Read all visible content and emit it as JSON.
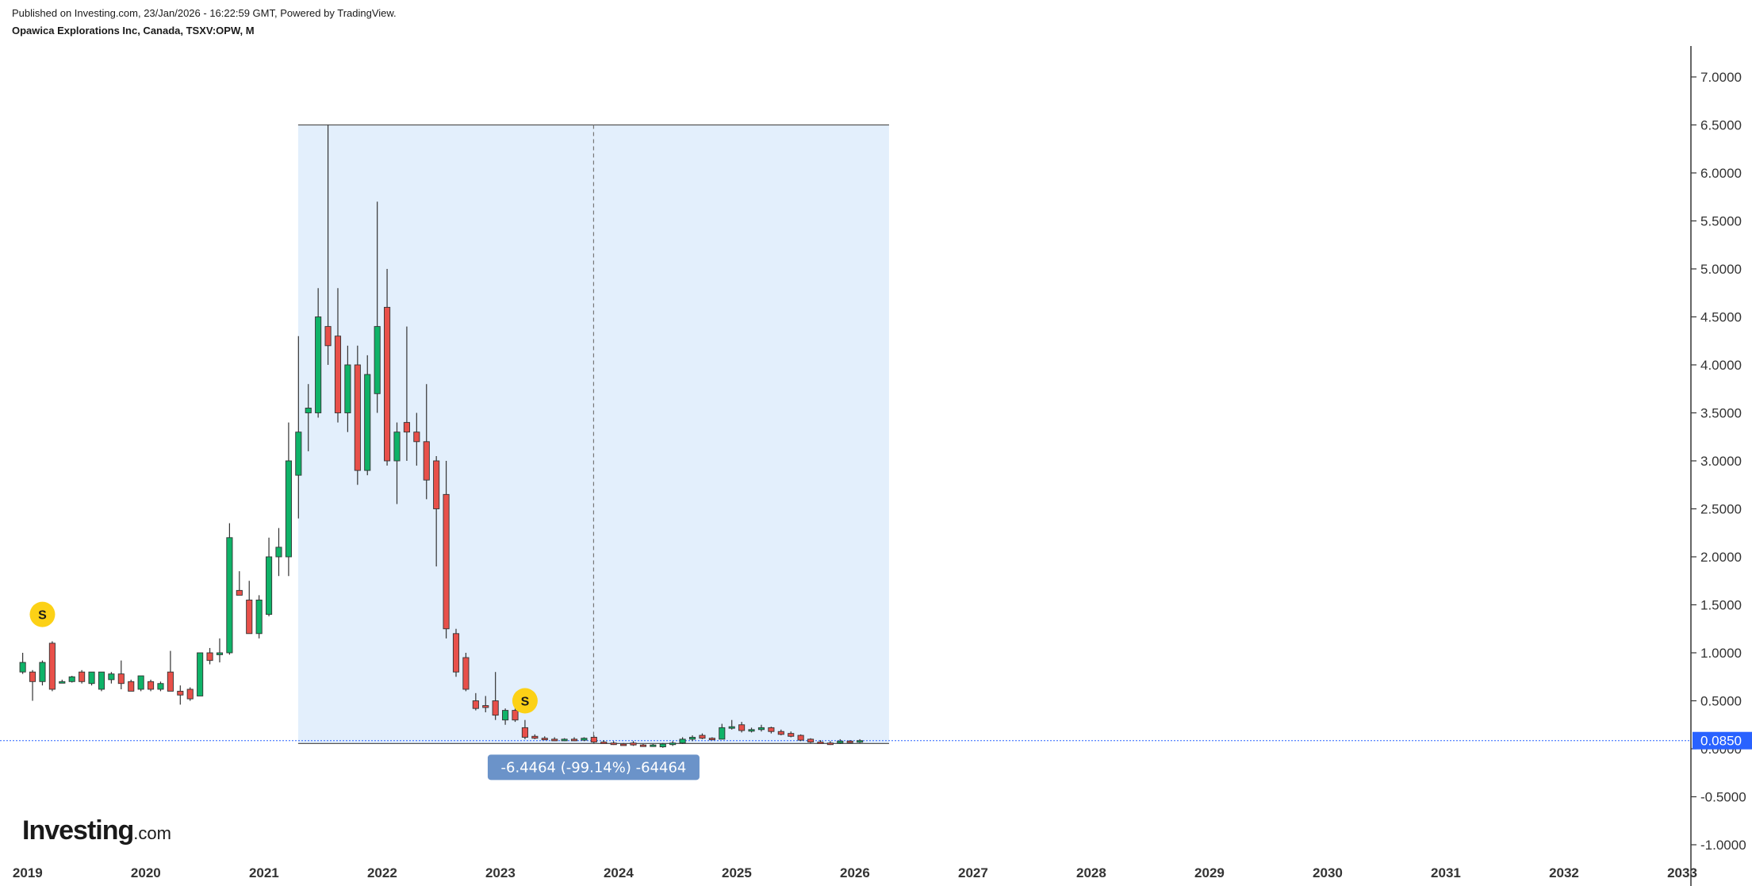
{
  "header": {
    "published": "Published on Investing.com, 23/Jan/2026 - 16:22:59 GMT, Powered by TradingView.",
    "title": "Opawica Explorations Inc, Canada, TSXV:OPW, M"
  },
  "logo": {
    "main": "Investing",
    "suffix": ".com"
  },
  "chart_data": {
    "type": "candlestick",
    "interval": "monthly",
    "ylim": [
      -1.15,
      7.35
    ],
    "xlim": [
      "2018-11",
      "2033-01"
    ],
    "y_ticks": [
      {
        "value": 7,
        "label": "7.0000"
      },
      {
        "value": 6.5,
        "label": "6.5000"
      },
      {
        "value": 6,
        "label": "6.0000"
      },
      {
        "value": 5.5,
        "label": "5.5000"
      },
      {
        "value": 5,
        "label": "5.0000"
      },
      {
        "value": 4.5,
        "label": "4.5000"
      },
      {
        "value": 4,
        "label": "4.0000"
      },
      {
        "value": 3.5,
        "label": "3.5000"
      },
      {
        "value": 3,
        "label": "3.0000"
      },
      {
        "value": 2.5,
        "label": "2.5000"
      },
      {
        "value": 2,
        "label": "2.0000"
      },
      {
        "value": 1.5,
        "label": "1.5000"
      },
      {
        "value": 1,
        "label": "1.0000"
      },
      {
        "value": 0.5,
        "label": "0.5000"
      },
      {
        "value": 0,
        "label": "0.0000"
      },
      {
        "value": -0.5,
        "label": "-0.5000"
      },
      {
        "value": -1,
        "label": "-1.0000"
      }
    ],
    "x_ticks": [
      "2019",
      "2020",
      "2021",
      "2022",
      "2023",
      "2024",
      "2025",
      "2026",
      "2027",
      "2028",
      "2029",
      "2030",
      "2031",
      "2032",
      "2033"
    ],
    "candles": [
      {
        "t": "2018-12",
        "o": 0.8,
        "h": 1.0,
        "l": 0.78,
        "c": 0.9
      },
      {
        "t": "2019-01",
        "o": 0.8,
        "h": 0.82,
        "l": 0.5,
        "c": 0.7
      },
      {
        "t": "2019-02",
        "o": 0.7,
        "h": 0.92,
        "l": 0.66,
        "c": 0.9
      },
      {
        "t": "2019-03",
        "o": 1.1,
        "h": 1.12,
        "l": 0.6,
        "c": 0.62
      },
      {
        "t": "2019-04",
        "o": 0.7,
        "h": 0.72,
        "l": 0.69,
        "c": 0.7
      },
      {
        "t": "2019-05",
        "o": 0.7,
        "h": 0.76,
        "l": 0.69,
        "c": 0.75
      },
      {
        "t": "2019-06",
        "o": 0.8,
        "h": 0.82,
        "l": 0.68,
        "c": 0.7
      },
      {
        "t": "2019-07",
        "o": 0.68,
        "h": 0.8,
        "l": 0.66,
        "c": 0.8
      },
      {
        "t": "2019-08",
        "o": 0.62,
        "h": 0.8,
        "l": 0.6,
        "c": 0.8
      },
      {
        "t": "2019-09",
        "o": 0.72,
        "h": 0.8,
        "l": 0.68,
        "c": 0.78
      },
      {
        "t": "2019-10",
        "o": 0.78,
        "h": 0.92,
        "l": 0.62,
        "c": 0.68
      },
      {
        "t": "2019-11",
        "o": 0.7,
        "h": 0.72,
        "l": 0.6,
        "c": 0.6
      },
      {
        "t": "2019-12",
        "o": 0.62,
        "h": 0.76,
        "l": 0.6,
        "c": 0.76
      },
      {
        "t": "2020-01",
        "o": 0.7,
        "h": 0.72,
        "l": 0.6,
        "c": 0.62
      },
      {
        "t": "2020-02",
        "o": 0.62,
        "h": 0.7,
        "l": 0.6,
        "c": 0.68
      },
      {
        "t": "2020-03",
        "o": 0.8,
        "h": 1.02,
        "l": 0.6,
        "c": 0.6
      },
      {
        "t": "2020-04",
        "o": 0.6,
        "h": 0.66,
        "l": 0.46,
        "c": 0.56
      },
      {
        "t": "2020-05",
        "o": 0.62,
        "h": 0.64,
        "l": 0.5,
        "c": 0.52
      },
      {
        "t": "2020-06",
        "o": 0.55,
        "h": 1.0,
        "l": 0.55,
        "c": 1.0
      },
      {
        "t": "2020-07",
        "o": 1.0,
        "h": 1.05,
        "l": 0.88,
        "c": 0.92
      },
      {
        "t": "2020-08",
        "o": 0.98,
        "h": 1.15,
        "l": 0.9,
        "c": 1.0
      },
      {
        "t": "2020-09",
        "o": 1.0,
        "h": 2.35,
        "l": 0.98,
        "c": 2.2
      },
      {
        "t": "2020-10",
        "o": 1.65,
        "h": 1.85,
        "l": 1.6,
        "c": 1.6
      },
      {
        "t": "2020-11",
        "o": 1.55,
        "h": 1.75,
        "l": 1.2,
        "c": 1.2
      },
      {
        "t": "2020-12",
        "o": 1.2,
        "h": 1.6,
        "l": 1.15,
        "c": 1.55
      },
      {
        "t": "2021-01",
        "o": 1.4,
        "h": 2.2,
        "l": 1.38,
        "c": 2.0
      },
      {
        "t": "2021-02",
        "o": 2.0,
        "h": 2.3,
        "l": 1.8,
        "c": 2.1
      },
      {
        "t": "2021-03",
        "o": 2.0,
        "h": 3.4,
        "l": 1.8,
        "c": 3.0
      },
      {
        "t": "2021-04",
        "o": 2.85,
        "h": 4.3,
        "l": 2.4,
        "c": 3.3
      },
      {
        "t": "2021-05",
        "o": 3.5,
        "h": 3.8,
        "l": 3.1,
        "c": 3.55
      },
      {
        "t": "2021-06",
        "o": 3.5,
        "h": 4.8,
        "l": 3.45,
        "c": 4.5
      },
      {
        "t": "2021-07",
        "o": 4.4,
        "h": 6.5,
        "l": 4.0,
        "c": 4.2
      },
      {
        "t": "2021-08",
        "o": 4.3,
        "h": 4.8,
        "l": 3.4,
        "c": 3.5
      },
      {
        "t": "2021-09",
        "o": 3.5,
        "h": 4.2,
        "l": 3.3,
        "c": 4.0
      },
      {
        "t": "2021-10",
        "o": 4.0,
        "h": 4.2,
        "l": 2.75,
        "c": 2.9
      },
      {
        "t": "2021-11",
        "o": 2.9,
        "h": 4.1,
        "l": 2.85,
        "c": 3.9
      },
      {
        "t": "2021-12",
        "o": 3.7,
        "h": 5.7,
        "l": 3.5,
        "c": 4.4
      },
      {
        "t": "2022-01",
        "o": 4.6,
        "h": 5.0,
        "l": 2.95,
        "c": 3.0
      },
      {
        "t": "2022-02",
        "o": 3.0,
        "h": 3.4,
        "l": 2.55,
        "c": 3.3
      },
      {
        "t": "2022-03",
        "o": 3.4,
        "h": 4.4,
        "l": 3.0,
        "c": 3.3
      },
      {
        "t": "2022-04",
        "o": 3.3,
        "h": 3.5,
        "l": 2.95,
        "c": 3.2
      },
      {
        "t": "2022-05",
        "o": 3.2,
        "h": 3.8,
        "l": 2.6,
        "c": 2.8
      },
      {
        "t": "2022-06",
        "o": 3.0,
        "h": 3.05,
        "l": 1.9,
        "c": 2.5
      },
      {
        "t": "2022-07",
        "o": 2.65,
        "h": 3.0,
        "l": 1.15,
        "c": 1.25
      },
      {
        "t": "2022-08",
        "o": 1.2,
        "h": 1.25,
        "l": 0.75,
        "c": 0.8
      },
      {
        "t": "2022-09",
        "o": 0.95,
        "h": 1.0,
        "l": 0.6,
        "c": 0.62
      },
      {
        "t": "2022-10",
        "o": 0.5,
        "h": 0.58,
        "l": 0.4,
        "c": 0.42
      },
      {
        "t": "2022-11",
        "o": 0.45,
        "h": 0.55,
        "l": 0.38,
        "c": 0.43
      },
      {
        "t": "2022-12",
        "o": 0.5,
        "h": 0.8,
        "l": 0.3,
        "c": 0.35
      },
      {
        "t": "2023-01",
        "o": 0.3,
        "h": 0.42,
        "l": 0.25,
        "c": 0.4
      },
      {
        "t": "2023-02",
        "o": 0.4,
        "h": 0.42,
        "l": 0.28,
        "c": 0.3
      },
      {
        "t": "2023-03",
        "o": 0.22,
        "h": 0.3,
        "l": 0.1,
        "c": 0.12
      },
      {
        "t": "2023-04",
        "o": 0.13,
        "h": 0.15,
        "l": 0.1,
        "c": 0.11
      },
      {
        "t": "2023-05",
        "o": 0.11,
        "h": 0.13,
        "l": 0.09,
        "c": 0.1
      },
      {
        "t": "2023-06",
        "o": 0.1,
        "h": 0.12,
        "l": 0.08,
        "c": 0.09
      },
      {
        "t": "2023-07",
        "o": 0.09,
        "h": 0.11,
        "l": 0.08,
        "c": 0.1
      },
      {
        "t": "2023-08",
        "o": 0.1,
        "h": 0.12,
        "l": 0.08,
        "c": 0.09
      },
      {
        "t": "2023-09",
        "o": 0.09,
        "h": 0.12,
        "l": 0.08,
        "c": 0.11
      },
      {
        "t": "2023-10",
        "o": 0.12,
        "h": 0.14,
        "l": 0.06,
        "c": 0.07
      },
      {
        "t": "2023-11",
        "o": 0.07,
        "h": 0.09,
        "l": 0.05,
        "c": 0.06
      },
      {
        "t": "2023-12",
        "o": 0.06,
        "h": 0.08,
        "l": 0.04,
        "c": 0.05
      },
      {
        "t": "2024-01",
        "o": 0.05,
        "h": 0.06,
        "l": 0.04,
        "c": 0.045
      },
      {
        "t": "2024-02",
        "o": 0.06,
        "h": 0.08,
        "l": 0.03,
        "c": 0.04
      },
      {
        "t": "2024-03",
        "o": 0.04,
        "h": 0.05,
        "l": 0.02,
        "c": 0.03
      },
      {
        "t": "2024-04",
        "o": 0.03,
        "h": 0.05,
        "l": 0.02,
        "c": 0.04
      },
      {
        "t": "2024-05",
        "o": 0.02,
        "h": 0.06,
        "l": 0.01,
        "c": 0.05
      },
      {
        "t": "2024-06",
        "o": 0.05,
        "h": 0.08,
        "l": 0.03,
        "c": 0.06
      },
      {
        "t": "2024-07",
        "o": 0.06,
        "h": 0.12,
        "l": 0.05,
        "c": 0.1
      },
      {
        "t": "2024-08",
        "o": 0.1,
        "h": 0.14,
        "l": 0.08,
        "c": 0.12
      },
      {
        "t": "2024-09",
        "o": 0.14,
        "h": 0.16,
        "l": 0.1,
        "c": 0.11
      },
      {
        "t": "2024-10",
        "o": 0.11,
        "h": 0.12,
        "l": 0.09,
        "c": 0.1
      },
      {
        "t": "2024-11",
        "o": 0.1,
        "h": 0.26,
        "l": 0.1,
        "c": 0.22
      },
      {
        "t": "2024-12",
        "o": 0.22,
        "h": 0.3,
        "l": 0.2,
        "c": 0.23
      },
      {
        "t": "2025-01",
        "o": 0.25,
        "h": 0.28,
        "l": 0.17,
        "c": 0.19
      },
      {
        "t": "2025-02",
        "o": 0.19,
        "h": 0.22,
        "l": 0.17,
        "c": 0.2
      },
      {
        "t": "2025-03",
        "o": 0.2,
        "h": 0.25,
        "l": 0.18,
        "c": 0.22
      },
      {
        "t": "2025-04",
        "o": 0.22,
        "h": 0.23,
        "l": 0.16,
        "c": 0.18
      },
      {
        "t": "2025-05",
        "o": 0.18,
        "h": 0.2,
        "l": 0.14,
        "c": 0.15
      },
      {
        "t": "2025-06",
        "o": 0.16,
        "h": 0.18,
        "l": 0.12,
        "c": 0.13
      },
      {
        "t": "2025-07",
        "o": 0.14,
        "h": 0.15,
        "l": 0.08,
        "c": 0.09
      },
      {
        "t": "2025-08",
        "o": 0.1,
        "h": 0.11,
        "l": 0.06,
        "c": 0.07
      },
      {
        "t": "2025-09",
        "o": 0.07,
        "h": 0.09,
        "l": 0.05,
        "c": 0.06
      },
      {
        "t": "2025-10",
        "o": 0.06,
        "h": 0.08,
        "l": 0.04,
        "c": 0.05
      },
      {
        "t": "2025-11",
        "o": 0.06,
        "h": 0.1,
        "l": 0.05,
        "c": 0.08
      },
      {
        "t": "2025-12",
        "o": 0.08,
        "h": 0.09,
        "l": 0.06,
        "c": 0.07
      },
      {
        "t": "2026-01",
        "o": 0.07,
        "h": 0.1,
        "l": 0.06,
        "c": 0.085
      }
    ],
    "last_price": {
      "value": 0.085,
      "label": "0.0850"
    },
    "measure": {
      "from": "2021-04-15",
      "to": "2026-04-15",
      "top": 6.5,
      "bottom": 0.055,
      "divider": "2023-10-15",
      "label": "-6.4464 (-99.14%) -64464"
    },
    "markers": [
      {
        "t": "2019-02",
        "y": 1.4,
        "label": "S"
      },
      {
        "t": "2023-03",
        "y": 0.5,
        "label": "S"
      }
    ],
    "colors": {
      "up": "#0fb368",
      "down": "#e8504a",
      "outline": "#333333",
      "measure_fill": "#e3effc",
      "measure_line": "#555555",
      "measure_label_bg": "#6b93c9",
      "last_price": "#2962ff",
      "marker": "#fcd116"
    }
  }
}
